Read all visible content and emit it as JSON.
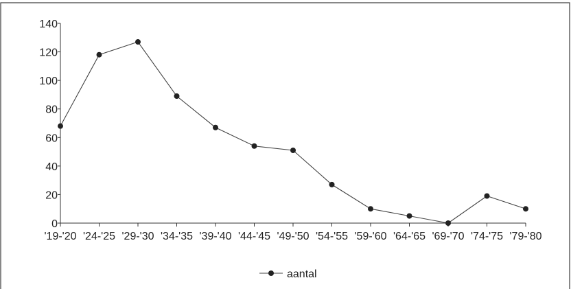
{
  "chart_data": {
    "type": "line",
    "categories": [
      "'19-'20",
      "'24-'25",
      "'29-'30",
      "'34-'35",
      "'39-'40",
      "'44-'45",
      "'49-'50",
      "'54-'55",
      "'59-'60",
      "'64-'65",
      "'69-'70",
      "'74-'75",
      "'79-'80"
    ],
    "series": [
      {
        "name": "aantal",
        "values": [
          68,
          118,
          127,
          89,
          67,
          54,
          51,
          27,
          10,
          5,
          0,
          19,
          10
        ]
      }
    ],
    "yticks": [
      0,
      20,
      40,
      60,
      80,
      100,
      120,
      140
    ],
    "ylim": [
      0,
      140
    ],
    "title": "",
    "xlabel": "",
    "ylabel": "",
    "grid": false,
    "legend": "bottom-center",
    "colors": {
      "line": "#444444",
      "marker": "#222222",
      "frame": "#3a3a3a"
    }
  }
}
